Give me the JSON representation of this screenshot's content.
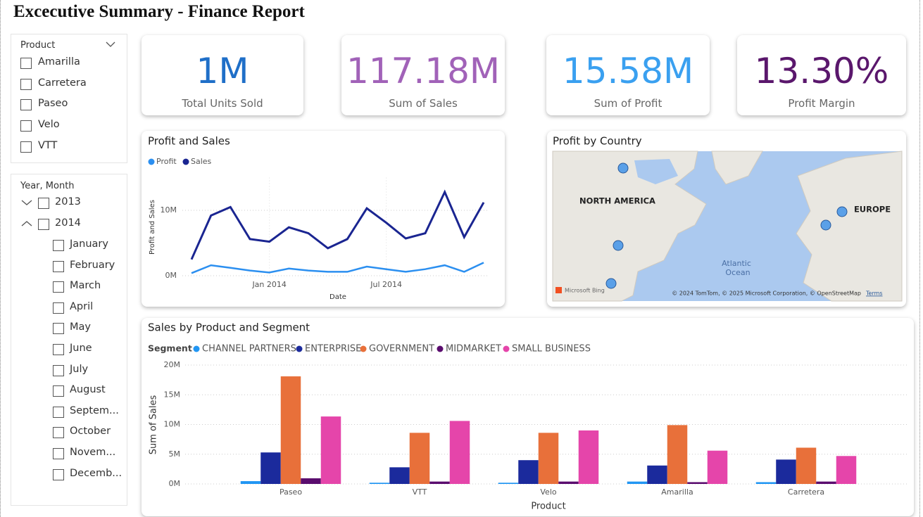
{
  "title": "Excecutive Summary - Finance Report",
  "slicers": [
    {
      "title": "Product",
      "items": [
        "Amarilla",
        "Carretera",
        "Paseo",
        "Velo",
        "VTT"
      ]
    },
    {
      "title": "Year, Month",
      "years": [
        "2013",
        "2014"
      ],
      "months": [
        "January",
        "February",
        "March",
        "April",
        "May",
        "June",
        "July",
        "August",
        "Septem...",
        "October",
        "Novem...",
        "Decemb..."
      ]
    }
  ],
  "cards": [
    {
      "value": "1M",
      "label": "Total Units Sold",
      "color": "#1f6fc8"
    },
    {
      "value": "117.18M",
      "label": "Sum of  Sales",
      "color": "#a162b8"
    },
    {
      "value": "15.58M",
      "label": "Sum of Profit",
      "color": "#3aa0f0"
    },
    {
      "value": "13.30%",
      "label": "Profit Margin",
      "color": "#5a176c"
    }
  ],
  "chart_data": [
    {
      "type": "line",
      "title": "Profit and Sales",
      "x": [
        "2013-09",
        "2013-10",
        "2013-11",
        "2013-12",
        "2014-01",
        "2014-02",
        "2014-03",
        "2014-04",
        "2014-05",
        "2014-06",
        "2014-07",
        "2014-08",
        "2014-09",
        "2014-10",
        "2014-11",
        "2014-12"
      ],
      "xticks": [
        {
          "value": "2014-01",
          "label": "Jan 2014"
        },
        {
          "value": "2014-07",
          "label": "Jul 2014"
        }
      ],
      "x_label": "Date",
      "y_label": "Profit and Sales",
      "ylim": [
        0,
        15000000
      ],
      "yticks": [
        {
          "value": 0,
          "label": "0M"
        },
        {
          "value": 10000000,
          "label": "10M"
        }
      ],
      "grid": true,
      "series": [
        {
          "name": "Profit",
          "color": "#2b8ff0",
          "values": [
            400000,
            1600000,
            1200000,
            800000,
            500000,
            1100000,
            800000,
            600000,
            600000,
            1400000,
            1000000,
            600000,
            1000000,
            1600000,
            600000,
            2000000
          ]
        },
        {
          "name": "Sales",
          "color": "#1a2591",
          "values": [
            2500000,
            9200000,
            10500000,
            5600000,
            5200000,
            7400000,
            6500000,
            4200000,
            5600000,
            10300000,
            8100000,
            5700000,
            6500000,
            12800000,
            5900000,
            11200000
          ]
        }
      ]
    },
    {
      "type": "bar",
      "title": "Sales by Product and Segment",
      "legend_title": "Segment",
      "categories": [
        "Paseo",
        "VTT",
        "Velo",
        "Amarilla",
        "Carretera"
      ],
      "x_label": "Product",
      "y_label": "Sum of Sales",
      "ylim": [
        0,
        20000000
      ],
      "yticks": [
        {
          "value": 0,
          "label": "0M"
        },
        {
          "value": 5000000,
          "label": "5M"
        },
        {
          "value": 10000000,
          "label": "10M"
        },
        {
          "value": 15000000,
          "label": "15M"
        },
        {
          "value": 20000000,
          "label": "20M"
        }
      ],
      "grid": true,
      "series": [
        {
          "name": "CHANNEL PARTNERS",
          "color": "#2196f3",
          "values": [
            470000,
            200000,
            200000,
            400000,
            300000
          ]
        },
        {
          "name": "ENTERPRISE",
          "color": "#1b2a9c",
          "values": [
            5300000,
            2800000,
            4000000,
            3100000,
            4100000
          ]
        },
        {
          "name": "GOVERNMENT",
          "color": "#e8703a",
          "values": [
            18100000,
            8600000,
            8600000,
            9900000,
            6100000
          ]
        },
        {
          "name": "MIDMARKET",
          "color": "#5a0c6e",
          "values": [
            950000,
            400000,
            400000,
            300000,
            400000
          ]
        },
        {
          "name": "SMALL BUSINESS",
          "color": "#e545aa",
          "values": [
            11350000,
            10600000,
            9000000,
            5600000,
            4700000
          ]
        }
      ]
    }
  ],
  "map": {
    "title": "Profit by Country",
    "labels": [
      "NORTH AMERICA",
      "EUROPE"
    ],
    "ocean": [
      "Atlantic",
      "Ocean"
    ],
    "logo": "Microsoft Bing",
    "attribution": "© 2024 TomTom, © 2025 Microsoft Corporation, © OpenStreetMap",
    "terms": "Terms"
  }
}
